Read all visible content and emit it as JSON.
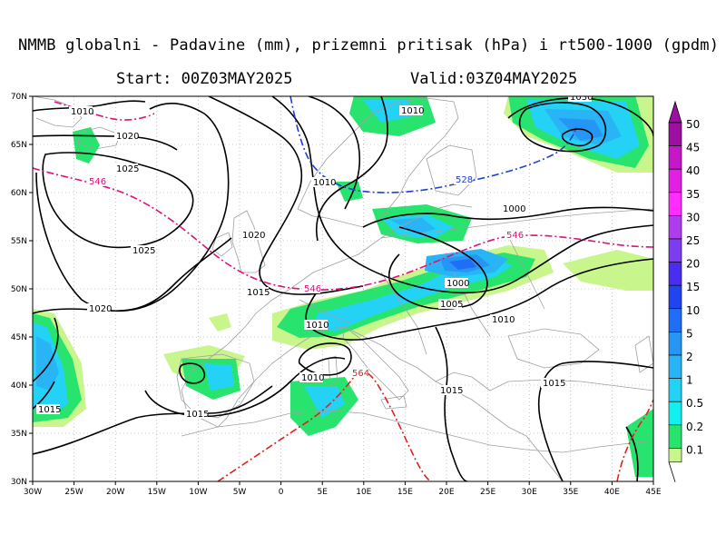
{
  "title": "NMMB globalni - Padavine (mm), prizemni pritisak (hPa) i rt500-1000 (gpdm)",
  "start": "Start: 00Z03MAY2025",
  "valid": "Valid:03Z04MAY2025",
  "axes": {
    "lat_labels": [
      "70N",
      "65N",
      "60N",
      "55N",
      "50N",
      "45N",
      "40N",
      "35N",
      "30N"
    ],
    "lon_labels": [
      "30W",
      "25W",
      "20W",
      "15W",
      "10W",
      "5W",
      "0",
      "5E",
      "10E",
      "15E",
      "20E",
      "25E",
      "30E",
      "35E",
      "40E",
      "45E"
    ]
  },
  "legend": {
    "levels": [
      "50",
      "45",
      "40",
      "35",
      "30",
      "25",
      "20",
      "15",
      "10",
      "5",
      "2",
      "1",
      "0.5",
      "0.2",
      "0.1"
    ],
    "colors": [
      "#9c0fa0",
      "#c517c8",
      "#e21fe3",
      "#ff2dff",
      "#b03cf0",
      "#7c3cf0",
      "#4a2ef0",
      "#2244f0",
      "#1f6ef5",
      "#2596f5",
      "#28b4f5",
      "#24d2f5",
      "#10f0f0",
      "#28e46e",
      "#c8f58c"
    ]
  },
  "isobar_labels": [
    "1010",
    "1020",
    "1025",
    "1025",
    "1020",
    "1020",
    "1015",
    "1010",
    "1010",
    "1015",
    "1015",
    "1010",
    "1010",
    "1000",
    "1005",
    "1010",
    "1015",
    "1015",
    "1000",
    "1030"
  ],
  "thickness_labels": [
    "546",
    "546",
    "528",
    "546",
    "564"
  ],
  "colors": {
    "land_border": "#a0a0a0",
    "isobar": "#000000",
    "thickness_cold": "#e0107a",
    "thickness_528": "#2040d0",
    "thickness_warm": "#e02020",
    "grid": "#888888"
  }
}
